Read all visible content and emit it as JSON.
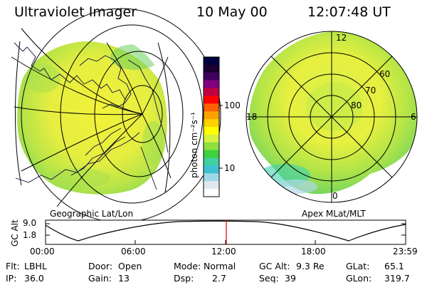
{
  "header": {
    "instrument": "Ultraviolet Imager",
    "date": "10 May 00",
    "time": "12:07:48 UT"
  },
  "colorbar": {
    "unit_label": "photon cm⁻²s⁻¹",
    "ticks": [
      "100",
      "10"
    ],
    "colors": [
      "#000040",
      "#1a0033",
      "#400060",
      "#800080",
      "#c00040",
      "#ff0000",
      "#ff6000",
      "#ffa000",
      "#ffd000",
      "#ffff00",
      "#d8f040",
      "#90e040",
      "#40d040",
      "#40d0a0",
      "#40c0d0",
      "#a0d8e8",
      "#e0e8f0",
      "#ffffff"
    ]
  },
  "left_panel": {
    "label": "Geographic Lat/Lon"
  },
  "right_panel": {
    "label": "Apex MLat/MLT",
    "mlt_labels": {
      "top": "12",
      "left": "18",
      "right": "6",
      "bottom": "0"
    },
    "lat_labels": [
      "60",
      "70",
      "80"
    ]
  },
  "altitude_plot": {
    "ylabel": "GC Alt",
    "yticks": [
      "9.0",
      "1.8"
    ],
    "xticks": [
      "00:00",
      "06:00",
      "12:00",
      "18:00",
      "23:59"
    ],
    "current_time_marker": "12:07"
  },
  "info": {
    "flt_label": "Flt:",
    "flt_value": "LBHL",
    "ip_label": "IP:",
    "ip_value": "36.0",
    "door_label": "Door:",
    "door_value": "Open",
    "gain_label": "Gain:",
    "gain_value": "13",
    "mode_label": "Mode:",
    "mode_value": "Normal",
    "dsp_label": "Dsp:",
    "dsp_value": "2.7",
    "gcalt_label": "GC Alt:",
    "gcalt_value": "9.3 Re",
    "seq_label": "Seq:",
    "seq_value": "39",
    "glat_label": "GLat:",
    "glat_value": "65.1",
    "glon_label": "GLon:",
    "glon_value": "319.7"
  }
}
